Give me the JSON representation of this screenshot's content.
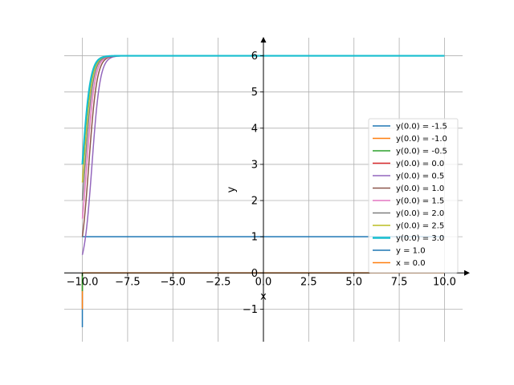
{
  "chart_data": {
    "type": "line",
    "xlabel": "x",
    "ylabel": "y",
    "xlim": [
      -11,
      11
    ],
    "ylim": [
      -1.9,
      6.5
    ],
    "grid": true,
    "legend_position": "right",
    "x_ticks": [
      -10.0,
      -7.5,
      -5.0,
      -2.5,
      0.0,
      2.5,
      5.0,
      7.5,
      10.0
    ],
    "x_tick_labels": [
      "−10.0",
      "−7.5",
      "−5.0",
      "−2.5",
      "0.0",
      "2.5",
      "5.0",
      "7.5",
      "10.0"
    ],
    "y_ticks": [
      -1,
      0,
      1,
      2,
      3,
      4,
      5,
      6
    ],
    "y_tick_labels": [
      "−1",
      "0",
      "1",
      "2",
      "3",
      "4",
      "5",
      "6"
    ],
    "solution_curves": {
      "x0": -10,
      "x_end": 10,
      "asymptote": 6.0,
      "series": [
        {
          "name": "y(0.0) = -1.5",
          "initial_y": -1.5,
          "color": "#1f77b4"
        },
        {
          "name": "y(0.0) = -1.0",
          "initial_y": -1.0,
          "color": "#ff7f0e"
        },
        {
          "name": "y(0.0) = -0.5",
          "initial_y": -0.5,
          "color": "#2ca02c"
        },
        {
          "name": "y(0.0) = 0.0",
          "initial_y": 0.0,
          "color": "#d62728"
        },
        {
          "name": "y(0.0) = 0.5",
          "initial_y": 0.5,
          "color": "#9467bd"
        },
        {
          "name": "y(0.0) = 1.0",
          "initial_y": 1.0,
          "color": "#8c564b"
        },
        {
          "name": "y(0.0) = 1.5",
          "initial_y": 1.5,
          "color": "#e377c2"
        },
        {
          "name": "y(0.0) = 2.0",
          "initial_y": 2.0,
          "color": "#7f7f7f"
        },
        {
          "name": "y(0.0) = 2.5",
          "initial_y": 2.5,
          "color": "#bcbd22"
        },
        {
          "name": "y(0.0) = 3.0",
          "initial_y": 3.0,
          "color": "#17becf"
        }
      ]
    },
    "reference_lines": [
      {
        "name": "y = 1.0",
        "orientation": "horizontal",
        "value": 1.0,
        "x_range": [
          -10,
          10
        ],
        "color": "#1f77b4"
      },
      {
        "name": "x = 0.0",
        "orientation": "horizontal",
        "value": 0.0,
        "x_range": [
          -10,
          10
        ],
        "color": "#ff7f0e"
      }
    ]
  }
}
